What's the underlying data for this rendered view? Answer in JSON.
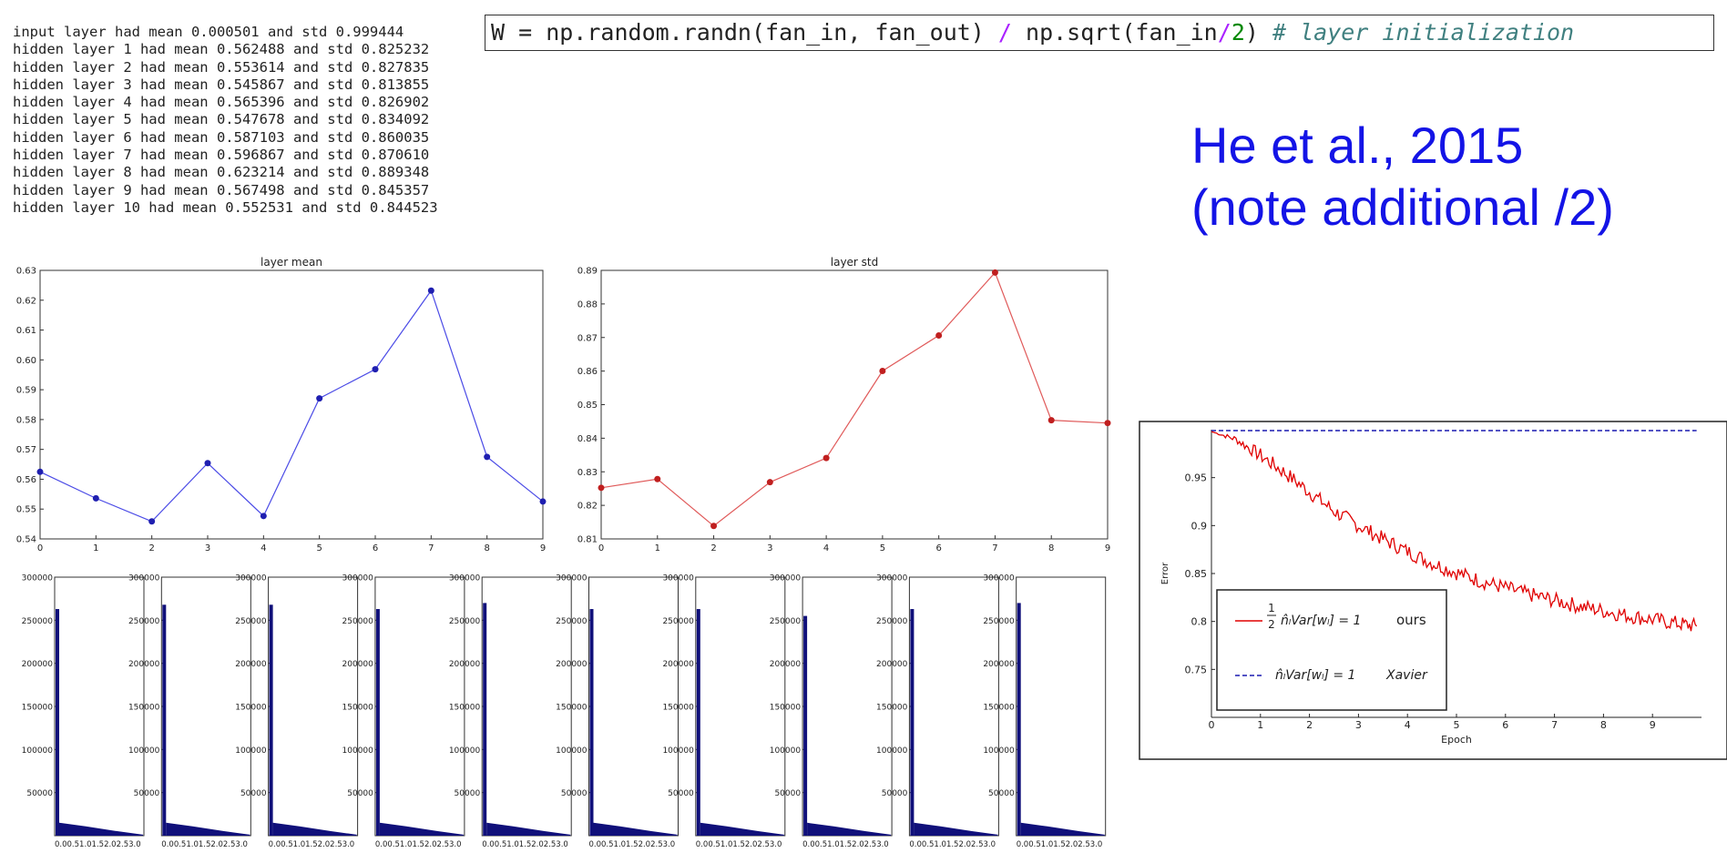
{
  "console": {
    "lines": [
      "input layer had mean 0.000501 and std 0.999444",
      "hidden layer 1 had mean 0.562488 and std 0.825232",
      "hidden layer 2 had mean 0.553614 and std 0.827835",
      "hidden layer 3 had mean 0.545867 and std 0.813855",
      "hidden layer 4 had mean 0.565396 and std 0.826902",
      "hidden layer 5 had mean 0.547678 and std 0.834092",
      "hidden layer 6 had mean 0.587103 and std 0.860035",
      "hidden layer 7 had mean 0.596867 and std 0.870610",
      "hidden layer 8 had mean 0.623214 and std 0.889348",
      "hidden layer 9 had mean 0.567498 and std 0.845357",
      "hidden layer 10 had mean 0.552531 and std 0.844523"
    ]
  },
  "code": {
    "p1": "W = np.random.randn(fan_in, fan_out) ",
    "op1": "/",
    "p2": " np.sqrt(fan_in",
    "op2": "/",
    "num": "2",
    "p3": ") ",
    "comment": "# layer initialization"
  },
  "citation": {
    "line1": "He et al., 2015",
    "line2": "(note additional /2)"
  },
  "colors": {
    "mean_line": "#4b4be6",
    "mean_dot": "#1f1fb0",
    "std_line": "#e05a5a",
    "std_dot": "#c01f1f",
    "hist_fill": "#10107a",
    "ours": "#e00000",
    "xavier": "#1a1ab0",
    "citation": "#1414e6"
  },
  "chart_data": [
    {
      "type": "line",
      "title": "layer mean",
      "x": [
        0,
        1,
        2,
        3,
        4,
        5,
        6,
        7,
        8,
        9
      ],
      "y": [
        0.562488,
        0.553614,
        0.545867,
        0.565396,
        0.547678,
        0.587103,
        0.596867,
        0.623214,
        0.567498,
        0.552531
      ],
      "xlim": [
        0,
        9
      ],
      "ylim": [
        0.54,
        0.63
      ],
      "xticks": [
        "0",
        "1",
        "2",
        "3",
        "4",
        "5",
        "6",
        "7",
        "8",
        "9"
      ],
      "yticks": [
        "0.54",
        "0.55",
        "0.56",
        "0.57",
        "0.58",
        "0.59",
        "0.60",
        "0.61",
        "0.62",
        "0.63"
      ]
    },
    {
      "type": "line",
      "title": "layer std",
      "x": [
        0,
        1,
        2,
        3,
        4,
        5,
        6,
        7,
        8,
        9
      ],
      "y": [
        0.825232,
        0.827835,
        0.813855,
        0.826902,
        0.834092,
        0.860035,
        0.87061,
        0.889348,
        0.845357,
        0.844523
      ],
      "xlim": [
        0,
        9
      ],
      "ylim": [
        0.81,
        0.89
      ],
      "xticks": [
        "0",
        "1",
        "2",
        "3",
        "4",
        "5",
        "6",
        "7",
        "8",
        "9"
      ],
      "yticks": [
        "0.81",
        "0.82",
        "0.83",
        "0.84",
        "0.85",
        "0.86",
        "0.87",
        "0.88",
        "0.89"
      ]
    },
    {
      "type": "bar",
      "description": "10 histograms of hidden-layer activations, one per layer",
      "count": 10,
      "ylim": [
        0,
        300000
      ],
      "xlim": [
        0,
        3.0
      ],
      "yticks": [
        "50000",
        "100000",
        "150000",
        "200000",
        "250000",
        "300000"
      ],
      "xtick_text": "0.00.51.01.52.02.53.0",
      "peak_values": [
        263000,
        268000,
        268000,
        263000,
        270000,
        263000,
        263000,
        255000,
        263000,
        270000
      ],
      "tail_start_value": 15000
    },
    {
      "type": "line",
      "xlabel": "Epoch",
      "ylabel": "Error",
      "xlim": [
        0,
        10
      ],
      "ylim": [
        0.7,
        1.0
      ],
      "xticks": [
        "0",
        "1",
        "2",
        "3",
        "4",
        "5",
        "6",
        "7",
        "8",
        "9"
      ],
      "yticks": [
        "0.75",
        "0.8",
        "0.85",
        "0.9",
        "0.95"
      ],
      "series": [
        {
          "legend_frac": "1",
          "legend_den": "2",
          "legend_main": "n̂ₗVar[wₗ] = 1",
          "legend_tag": "ours",
          "x": [
            0,
            0.5,
            1,
            1.5,
            2,
            2.5,
            3,
            3.5,
            4,
            4.5,
            5,
            5.5,
            6,
            6.5,
            7,
            7.5,
            8,
            8.5,
            9,
            9.5,
            9.9
          ],
          "y": [
            0.998,
            0.99,
            0.973,
            0.955,
            0.935,
            0.915,
            0.9,
            0.886,
            0.873,
            0.861,
            0.851,
            0.842,
            0.835,
            0.828,
            0.822,
            0.816,
            0.811,
            0.806,
            0.802,
            0.798,
            0.795
          ]
        },
        {
          "legend_main": "n̂ₗVar[wₗ] = 1",
          "legend_tag": "Xavier",
          "x": [
            0,
            9.9
          ],
          "y": [
            1.0,
            1.0
          ]
        }
      ]
    }
  ]
}
